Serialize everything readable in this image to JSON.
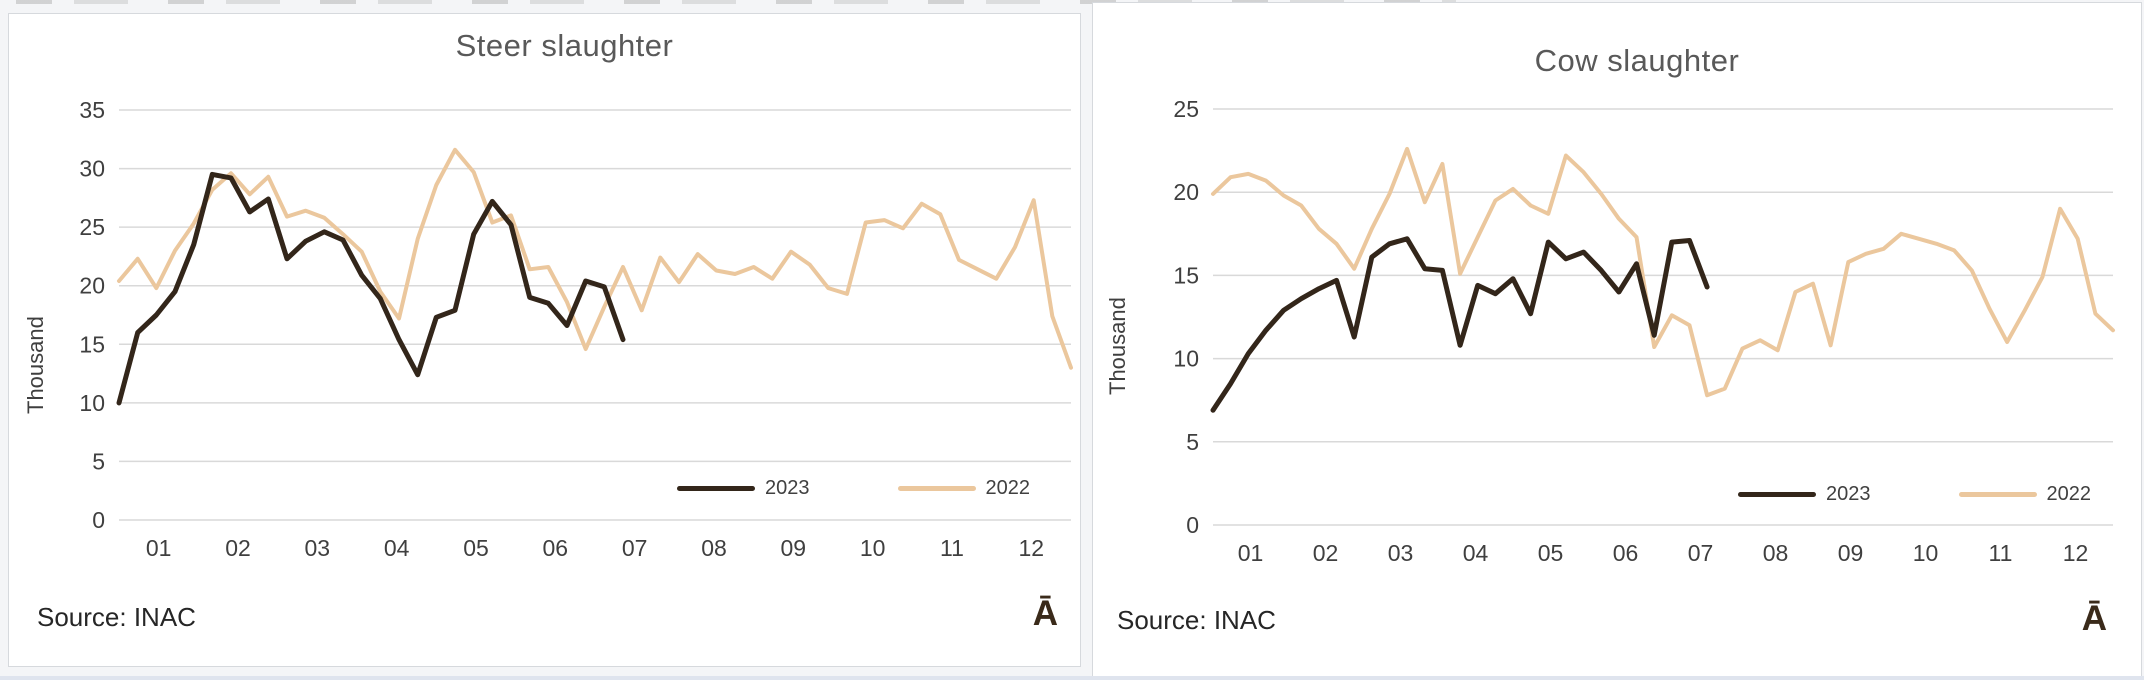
{
  "chart_data": [
    {
      "type": "line",
      "title": "Steer slaughter",
      "ylabel": "Thousand",
      "ylim": [
        0,
        35
      ],
      "yticks": [
        0,
        5,
        10,
        15,
        20,
        25,
        30,
        35
      ],
      "xtick_labels": [
        "01",
        "02",
        "03",
        "04",
        "05",
        "06",
        "07",
        "08",
        "09",
        "10",
        "11",
        "12"
      ],
      "x_unit": "week of year (months shown)",
      "grid": "horizontal",
      "legend_position": "inside-bottom-right",
      "source": "Source: INAC",
      "logo": "Ā",
      "series": [
        {
          "name": "2023",
          "color": "#33261a",
          "values": [
            10.0,
            16.0,
            17.5,
            19.5,
            23.5,
            29.5,
            29.2,
            26.3,
            27.4,
            22.3,
            23.8,
            24.6,
            23.9,
            20.9,
            18.9,
            15.4,
            12.4,
            17.3,
            17.9,
            24.4,
            27.2,
            25.2,
            19.0,
            18.5,
            16.6,
            20.4,
            19.9,
            15.4
          ]
        },
        {
          "name": "2022",
          "color": "#ebc79d",
          "values": [
            20.4,
            22.3,
            19.8,
            23.0,
            25.3,
            28.2,
            29.6,
            27.8,
            29.3,
            25.9,
            26.4,
            25.8,
            24.4,
            22.9,
            19.5,
            17.2,
            24.0,
            28.6,
            31.6,
            29.7,
            25.4,
            26.0,
            21.4,
            21.6,
            18.6,
            14.6,
            18.2,
            21.6,
            17.9,
            22.4,
            20.3,
            22.7,
            21.3,
            21.0,
            21.6,
            20.6,
            22.9,
            21.8,
            19.8,
            19.3,
            25.4,
            25.6,
            24.9,
            27.0,
            26.1,
            22.2,
            21.4,
            20.6,
            23.3,
            27.3,
            17.4,
            13.0
          ]
        }
      ]
    },
    {
      "type": "line",
      "title": "Cow slaughter",
      "ylabel": "Thousand",
      "ylim": [
        0,
        25
      ],
      "yticks": [
        0,
        5,
        10,
        15,
        20,
        25
      ],
      "xtick_labels": [
        "01",
        "02",
        "03",
        "04",
        "05",
        "06",
        "07",
        "08",
        "09",
        "10",
        "11",
        "12"
      ],
      "x_unit": "week of year (months shown)",
      "grid": "horizontal",
      "legend_position": "inside-bottom-right",
      "source": "Source: INAC",
      "logo": "Ā",
      "series": [
        {
          "name": "2023",
          "color": "#33261a",
          "values": [
            6.9,
            8.5,
            10.3,
            11.7,
            12.9,
            13.6,
            14.2,
            14.7,
            11.3,
            16.1,
            16.9,
            17.2,
            15.4,
            15.3,
            10.8,
            14.4,
            13.9,
            14.8,
            12.7,
            17.0,
            16.0,
            16.4,
            15.3,
            14.0,
            15.7,
            11.4,
            17.0,
            17.1,
            14.3
          ]
        },
        {
          "name": "2022",
          "color": "#ebc79d",
          "values": [
            19.9,
            20.9,
            21.1,
            20.7,
            19.8,
            19.2,
            17.8,
            16.9,
            15.4,
            17.8,
            19.9,
            22.6,
            19.4,
            21.7,
            15.1,
            17.3,
            19.5,
            20.2,
            19.2,
            18.7,
            22.2,
            21.2,
            19.9,
            18.4,
            17.3,
            10.7,
            12.6,
            12.0,
            7.8,
            8.2,
            10.6,
            11.1,
            10.5,
            14.0,
            14.5,
            10.8,
            15.8,
            16.3,
            16.6,
            17.5,
            17.2,
            16.9,
            16.5,
            15.3,
            13.0,
            11.0,
            12.9,
            14.9,
            19.0,
            17.2,
            12.7,
            11.7
          ]
        }
      ]
    }
  ]
}
